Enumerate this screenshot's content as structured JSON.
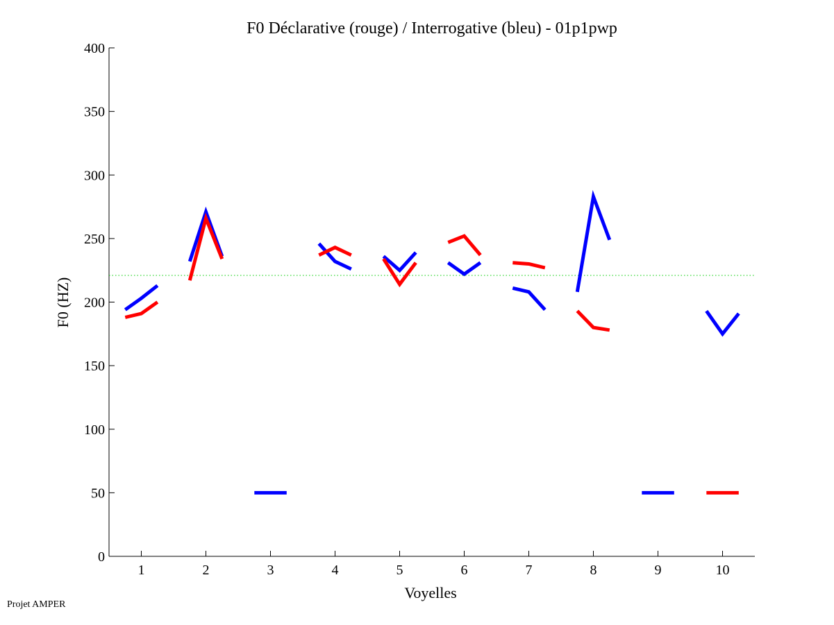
{
  "chart_data": {
    "type": "line",
    "title": "F0 Déclarative (rouge) / Interrogative (bleu) - 01p1pwp",
    "xlabel": "Voyelles",
    "ylabel": "F0 (HZ)",
    "xlim": [
      0.5,
      10.5
    ],
    "ylim": [
      0,
      400
    ],
    "xticks": [
      1,
      2,
      3,
      4,
      5,
      6,
      7,
      8,
      9,
      10
    ],
    "yticks": [
      0,
      50,
      100,
      150,
      200,
      250,
      300,
      350,
      400
    ],
    "reference_line": {
      "y": 221,
      "color": "#00cc00",
      "style": "dotted"
    },
    "series": [
      {
        "name": "Interrogative (bleu)",
        "color": "#0000ff",
        "segments": [
          {
            "vowel": 1,
            "values": [
              194,
              203,
              213
            ]
          },
          {
            "vowel": 2,
            "values": [
              232,
              271,
              236
            ]
          },
          {
            "vowel": 3,
            "values": [
              50,
              50,
              50
            ]
          },
          {
            "vowel": 4,
            "values": [
              246,
              232,
              226
            ]
          },
          {
            "vowel": 5,
            "values": [
              236,
              225,
              239
            ]
          },
          {
            "vowel": 6,
            "values": [
              231,
              222,
              231
            ]
          },
          {
            "vowel": 7,
            "values": [
              211,
              208,
              194
            ]
          },
          {
            "vowel": 8,
            "values": [
              208,
              283,
              249
            ]
          },
          {
            "vowel": 9,
            "values": [
              50,
              50,
              50
            ]
          },
          {
            "vowel": 10,
            "values": [
              193,
              175,
              191
            ]
          }
        ]
      },
      {
        "name": "Déclarative (rouge)",
        "color": "#ff0000",
        "segments": [
          {
            "vowel": 1,
            "values": [
              188,
              191,
              200
            ]
          },
          {
            "vowel": 2,
            "values": [
              217,
              266,
              234
            ]
          },
          {
            "vowel": 4,
            "values": [
              237,
              243,
              237
            ]
          },
          {
            "vowel": 5,
            "values": [
              234,
              214,
              231
            ]
          },
          {
            "vowel": 6,
            "values": [
              247,
              252,
              237
            ]
          },
          {
            "vowel": 7,
            "values": [
              231,
              230,
              227
            ]
          },
          {
            "vowel": 8,
            "values": [
              193,
              180,
              178
            ]
          },
          {
            "vowel": 10,
            "values": [
              50,
              50,
              50
            ]
          }
        ]
      }
    ]
  },
  "footer": "Projet AMPER"
}
